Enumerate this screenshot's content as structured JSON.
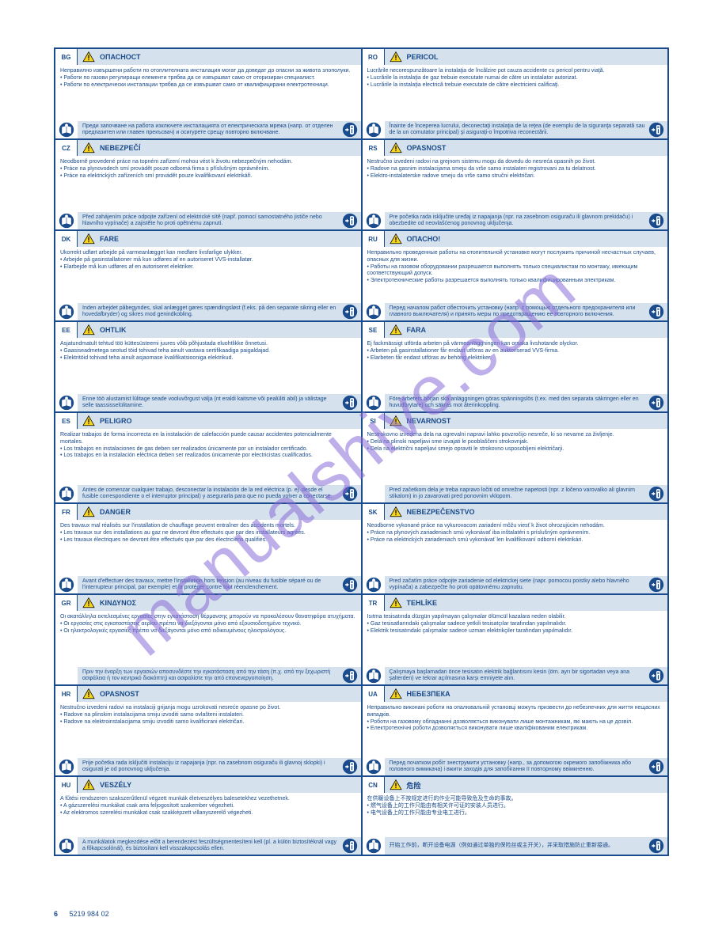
{
  "watermark": "manualshive.com",
  "page_number": "6",
  "page_code": "5219 984 02",
  "colors": {
    "border": "#1a4b8c",
    "band": "#d5e2ed",
    "text": "#1a4b8c",
    "icon_blue": "#1a4b8c",
    "icon_white": "#ffffff",
    "warn_yellow": "#f7d418",
    "warn_black": "#000000",
    "watermark": "#8a6dd9"
  },
  "cells": [
    {
      "lang": "BG",
      "header": "ОПАСНОСТ",
      "body": "Неправилно извършени работи по отоплителната инсталация могат да доведат до опасни за живота злополуки.\n• Работи по газови регулиращи елементи трябва да се извършват само от оторизиран специалист.\n• Работи по електрически инсталации трябва да се извършват само от квалифицирани електротехници.",
      "footer": "Преди започване на работа изключете инсталацията от електрическата мрежа (напр. от отделен предпазител или главен прекъсвач) и осигурете срещу повторно включване.",
      "left_icon": true,
      "right_icon": true
    },
    {
      "lang": "RO",
      "header": "PERICOL",
      "body": "Lucrările necorespunzătoare la instalaţia de încălzire pot cauza accidente cu pericol pentru viaţă.\n• Lucrările la instalaţia de gaz trebuie executate numai de către un instalator autorizat.\n• Lucrările la instalaţia electrică trebuie executate de către electricieni calificaţi.",
      "footer": "Înainte de începerea lucrului, deconectaţi instalaţia de la reţea (de exemplu de la siguranţa separată sau de la un comutator principal) şi asiguraţi-o împotriva reconectării.",
      "left_icon": true,
      "right_icon": true
    },
    {
      "lang": "CZ",
      "header": "NEBEZPEČÍ",
      "body": "Neodborně provedené práce na topném zařízení mohou vést k životu nebezpečným nehodám.\n• Práce na plynovodech smí provádět pouze odborná firma s příslušným oprávněním.\n• Práce na elektrických zařízeních smí provádět pouze kvalifikovaní elektrikáři.",
      "footer": "Před zahájením práce odpojte zařízení od elektrické sítě (např. pomocí samostatného jističe nebo hlavního vypínače) a zajistěte ho proti opětnému zapnutí.",
      "left_icon": true,
      "right_icon": true
    },
    {
      "lang": "RS",
      "header": "OPASNOST",
      "body": "Nestručno izvedeni radovi na grejnom sistemu mogu da dovedu do nesreća opasnih po život.\n• Radove na gasnim instalacijama smeju da vrše samo instalateri registrovani za tu delatnost.\n• Elektro-instalaterske radove smeju da vrše samo stručni električari.",
      "footer": "Pre početka rada isključite uređaj iz napajanja (npr. na zasebnom osiguraču ili glavnom prekidaču) i obezbedite od neovlašćenog ponovnog uključenja.",
      "left_icon": true,
      "right_icon": true
    },
    {
      "lang": "DK",
      "header": "FARE",
      "body": "Ukorrekt udført arbejde på varmeanlægget kan medføre livsfarlige ulykker.\n• Arbejde på gasinstallationer må kun udføres af en autoriseret VVS-installatør.\n• Elarbejde må kun udføres af en autoriseret elektriker.",
      "footer": "Inden arbejdet påbegyndes, skal anlægget gøres spændingsløst (f.eks. på den separate sikring eller en hovedafbryder) og sikres mod genindkobling.",
      "left_icon": true,
      "right_icon": true
    },
    {
      "lang": "RU",
      "header": "ОПАСНО!",
      "body": "Неправильно проведенные работы на отопительной установке могут послужить причиной несчастных случаев, опасных для жизни.\n• Работы на газовом оборудовании разрешается выполнять только специалистам по монтажу, имеющим соответствующий допуск.\n• Электротехнические работы разрешается выполнять только квалифицированным электрикам.",
      "footer": "Перед началом работ обесточить установку (напр. с помощью отдельного предохранителя или главного выключателя) и принять меры по предотвращению ее повторного включения.",
      "left_icon": true,
      "right_icon": true
    },
    {
      "lang": "EE",
      "header": "OHTLIK",
      "body": "Asjatundmatult tehtud töö küttesüsteemi juures võib põhjustada eluohtlikke õnnetusi.\n• Gaasiseadmetega seotud töid tohivad teha ainult vastava sertifikaadiga paigaldajad.\n• Elektritöid tohivad teha ainult asjaomase kvalifikatsiooniga elektrikud.",
      "footer": "Enne töö alustamist lülitage seade vooluvõrgust välja (nt eraldi kaitsme või pealüliti abil) ja välistage selle taassisselülitamine.",
      "left_icon": true,
      "right_icon": true
    },
    {
      "lang": "SE",
      "header": "FARA",
      "body": "Ej fackmässigt utförda arbeten på värmeanläggningen kan orsaka livshotande olyckor.\n• Arbeten på gasinstallationer får endast utföras av en auktoriserad VVS-firma.\n• Elarbeten får endast utföras av behörig elektriker.",
      "footer": "Före arbetets början ska anläggningen göras spänningslös (t.ex. med den separata säkringen eller en huvudbrytare) och säkras mot återinkoppling.",
      "left_icon": true,
      "right_icon": true
    },
    {
      "lang": "ES",
      "header": "PELIGRO",
      "body": "Realizar trabajos de forma incorrecta en la instalación de calefacción puede causar accidentes potencialmente mortales.\n• Los trabajos en instalaciones de gas deben ser realizados únicamente por un instalador certificado.\n• Los trabajos en la instalación eléctrica deben ser realizados únicamente por electricistas cualificados.",
      "footer": "Antes de comenzar cualquier trabajo, desconectar la instalación de la red eléctrica (p. ej. desde el fusible correspondiente o el interruptor principal) y asegurarla para que no pueda volver a conectarse.",
      "left_icon": true,
      "right_icon": true
    },
    {
      "lang": "SI",
      "header": "NEVARNOST",
      "body": "Nestrokovno izvedena dela na ogrevalni napravi lahko povzročijo nesreče, ki so nevarne za življenje.\n• Dela na plinski napeljavi sme izvajati le pooblaščeni strokovnjak.\n• Dela na električni napeljavi smejo opraviti le strokovno usposobljeni električarji.",
      "footer": "Pred začetkom dela je treba napravo ločiti od omrežne napetosti (npr. z ločeno varovalko ali glavnim stikalom) in jo zavarovati pred ponovnim vklopom.",
      "left_icon": false,
      "right_icon": true
    },
    {
      "lang": "FR",
      "header": "DANGER",
      "body": "Des travaux mal réalisés sur l'installation de chauffage peuvent entraîner des accidents mortels.\n• Les travaux sur des installations au gaz ne devront être effectués que par des installateurs agréés.\n• Les travaux électriques ne devront être effectués que par des électriciens qualifiés.",
      "footer": "Avant d'effectuer des travaux, mettre l'installation hors tension (au niveau du fusible séparé ou de l'interrupteur principal, par exemple) et la protéger contre tout réenclenchement.",
      "left_icon": true,
      "right_icon": true
    },
    {
      "lang": "SK",
      "header": "NEBEZPEČENSTVO",
      "body": "Neodborne vykonané práce na vykurovacom zariadení môžu viesť k život ohrozujúcim nehodám.\n• Práce na plynových zariadeniach smú vykonávať iba inštalatéri s príslušným oprávnením.\n• Práce na elektrických zariadeniach smú vykonávať len kvalifikovaní odborní elektrikári.",
      "footer": "Pred začatím práce odpojte zariadenie od elektrickej siete (napr. pomocou poistky alebo hlavného vypínača) a zabezpečte ho proti opätovnému zapnutiu.",
      "left_icon": true,
      "right_icon": true
    },
    {
      "lang": "GR",
      "header": "ΚΙΝΔΥΝΟΣ",
      "body": "Οι ακατάλληλα εκτελεσμένες εργασίες στην εγκατάσταση θέρμανσης μπορούν να προκαλέσουν θανατηφόρα ατυχήματα.\n• Οι εργασίες στις εγκαταστάσεις αερίου πρέπει να διεξάγονται μόνο από εξουσιοδοτημένο τεχνικό.\n• Οι ηλεκτρολογικές εργασίες πρέπει να διεξάγονται μόνο από ειδικευμένους ηλεκτρολόγους.",
      "footer": "Πριν την έναρξη των εργασιών αποσυνδέστε την εγκατάσταση από την τάση (π.χ. από την ξεχωριστή ασφάλεια ή τον κεντρικό διακόπτη) και ασφαλίστε την από επανενεργοποίηση.",
      "left_icon": false,
      "right_icon": true
    },
    {
      "lang": "TR",
      "header": "TEHLİKE",
      "body": "Isıtma tesisatında düzgün yapılmayan çalışmalar ölümcül kazalara neden olabilir.\n• Gaz tesisatlarındaki çalışmalar sadece yetkili tesisatçılar tarafından yapılmalıdır.\n• Elektrik tesisatındaki çalışmalar sadece uzman elektrikçiler tarafından yapılmalıdır.",
      "footer": "Çalışmaya başlamadan önce tesisatın elektrik bağlantısını kesin (örn. ayrı bir sigortadan veya ana şalterden) ve tekrar açılmasına karşı emniyete alın.",
      "left_icon": true,
      "right_icon": true
    },
    {
      "lang": "HR",
      "header": "OPASNOST",
      "body": "Nestručno izvedeni radovi na instalaciji grijanja mogu uzrokovati nesreće opasne po život.\n• Radove na plinskim instalacijama smiju izvoditi samo ovlašteni instalateri.\n• Radove na elektroinstalacijama smiju izvoditi samo kvalificirani električari.",
      "footer": "Prije početka rada isključiti instalaciju iz napajanja (npr. na zasebnom osiguraču ili glavnoj sklopki) i osigurati je od ponovnog uključenja.",
      "left_icon": true,
      "right_icon": true
    },
    {
      "lang": "UA",
      "header": "НЕБЕЗПЕКА",
      "body": "Неправильно виконані роботи на опалювальній установці можуть призвести до небезпечних для життя нещасних випадків.\n• Роботи на газовому обладнанні дозволяється виконувати лише монтажникам, які мають на це дозвіл.\n• Електротехнічні роботи дозволяється виконувати лише кваліфікованим електрикам.",
      "footer": "Перед початком робіт знеструмити установку (напр., за допомогою окремого запобіжника або головного вимикача) і вжити заходів для запобігання її повторному ввімкненню.",
      "left_icon": true,
      "right_icon": true
    },
    {
      "lang": "HU",
      "header": "VESZÉLY",
      "body": "A fűtési rendszeren szakszerűtlenül végzett munkák életveszélyes balesetekhez vezethetnek.\n• A gázszerelési munkákat csak arra feljogosított szakember végezheti.\n• Az elektromos szerelési munkákat csak szakképzett villanyszerelő végezheti.",
      "footer": "A munkálatok megkezdése előtt a berendezést feszültségmentesíteni kell (pl. a külön biztosítéknál vagy a főkapcsolónál), és biztosítani kell visszakapcsolás ellen.",
      "left_icon": true,
      "right_icon": true
    },
    {
      "lang": "CN",
      "header": "危险",
      "body": "在供暖设备上不按规定进行的作业可能导致危及生命的事故。\n• 燃气设备上的工作只能由有相关许可证的安装人员进行。\n• 电气设备上的工作只能由专业电工进行。",
      "footer": "开始工作前，断开设备电源（例如通过单独的保险丝或主开关），并采取措施防止重新接通。",
      "left_icon": true,
      "right_icon": true
    }
  ]
}
